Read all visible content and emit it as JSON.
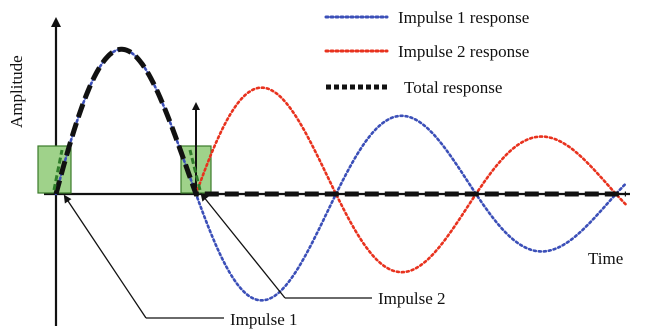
{
  "diagram": {
    "y_axis_label": "Amplitude",
    "x_axis_label": "Time",
    "legend": [
      {
        "label": "Impulse 1 response",
        "color": "#3b4fb8",
        "style": "dotted"
      },
      {
        "label": "Impulse 2 response",
        "color": "#e8321e",
        "style": "dotted"
      },
      {
        "label": "Total response",
        "color": "#111111",
        "style": "dashed"
      }
    ],
    "annotations": {
      "impulse1": "Impulse 1",
      "impulse2": "Impulse 2"
    },
    "impulse_box_color": "#9fd28a",
    "impulse_box_border": "#3a7a2a",
    "impulse_stem_color": "#2f7d2a"
  }
}
